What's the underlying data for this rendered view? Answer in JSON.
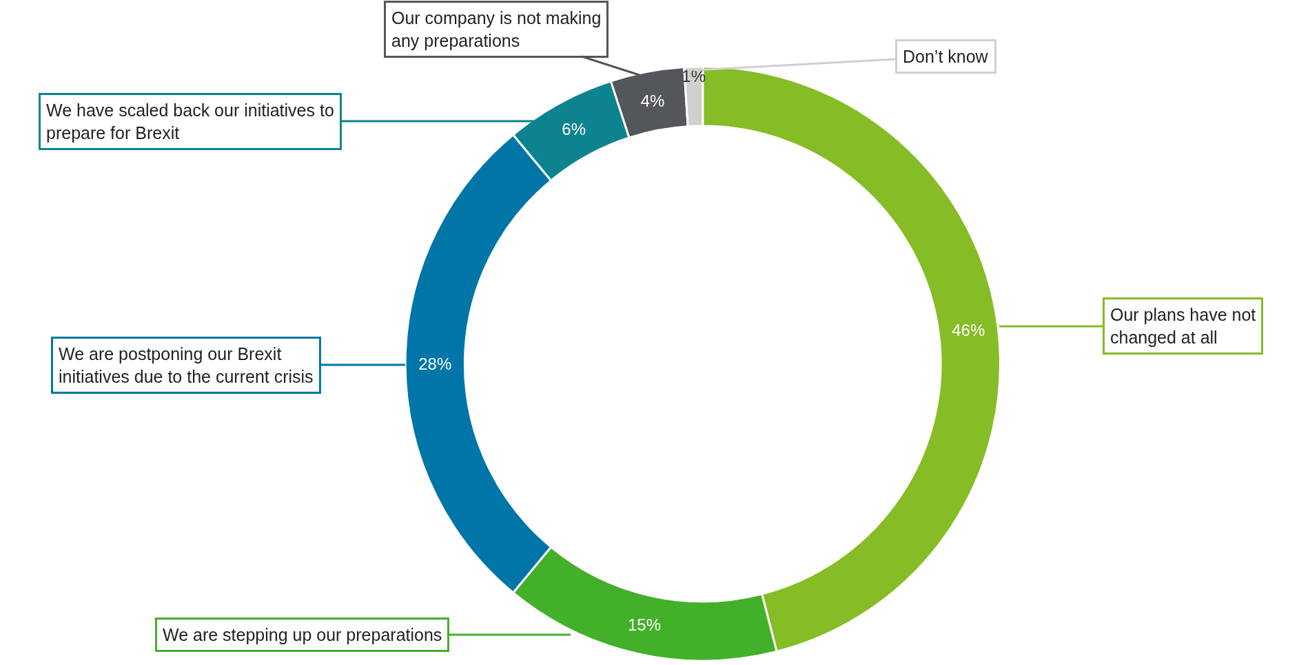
{
  "chart_data": {
    "type": "donut",
    "categories": [
      "Our plans have not changed at all",
      "We are stepping up our preparations",
      "We are postponing our Brexit initiatives due to the current crisis",
      "We have scaled back our initiatives to prepare for Brexit",
      "Our company is not making any preparations",
      "Don’t know"
    ],
    "values": [
      46,
      15,
      28,
      6,
      4,
      1
    ],
    "value_labels": [
      "46%",
      "15%",
      "28%",
      "6%",
      "4%",
      "1%"
    ],
    "colors": [
      "#86bc25",
      "#43b02a",
      "#0076a8",
      "#0d8390",
      "#53565a",
      "#d0d0ce"
    ],
    "legend": false
  }
}
